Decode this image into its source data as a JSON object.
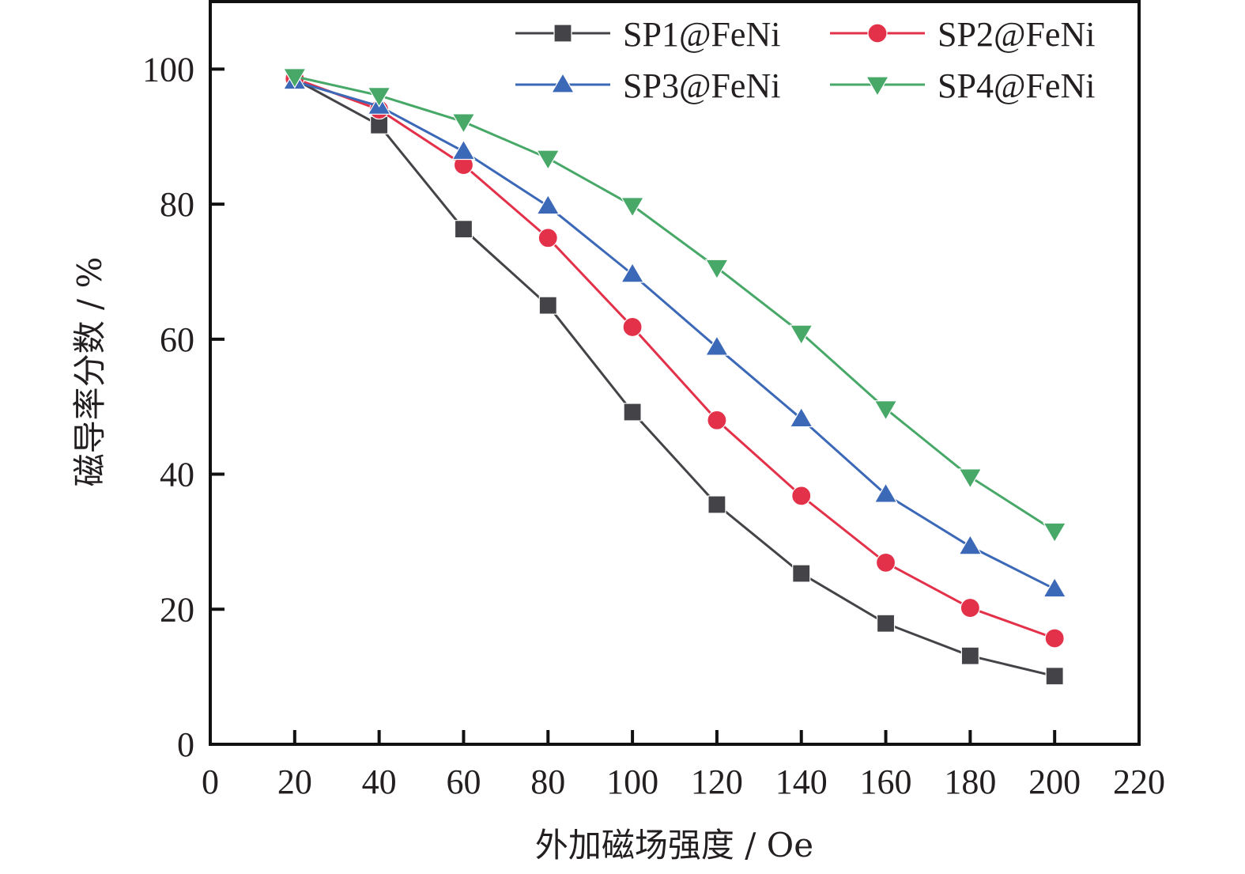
{
  "chart_data": {
    "type": "line",
    "title": "",
    "xlabel": "外加磁场强度 / Oe",
    "ylabel": "磁导率分数 / %",
    "xlim": [
      0,
      220
    ],
    "ylim": [
      0,
      110
    ],
    "xticks": [
      0,
      20,
      40,
      60,
      80,
      100,
      120,
      140,
      160,
      180,
      200,
      220
    ],
    "yticks": [
      0,
      20,
      40,
      60,
      80,
      100
    ],
    "x": [
      20,
      40,
      60,
      80,
      100,
      120,
      140,
      160,
      180,
      200
    ],
    "grid": false,
    "legend_position": "top-right",
    "series": [
      {
        "name": "SP1@FeNi",
        "marker": "square",
        "color": "#444448",
        "values": [
          98.5,
          91.7,
          76.3,
          65.0,
          49.2,
          35.5,
          25.3,
          17.9,
          13.1,
          10.1
        ]
      },
      {
        "name": "SP2@FeNi",
        "marker": "circle",
        "color": "#e4314a",
        "values": [
          98.6,
          94.0,
          85.8,
          75.0,
          61.8,
          48.0,
          36.8,
          26.9,
          20.2,
          15.7
        ]
      },
      {
        "name": "SP3@FeNi",
        "marker": "triangle-up",
        "color": "#3c68b8",
        "values": [
          98.2,
          94.5,
          87.8,
          79.7,
          69.6,
          58.8,
          48.2,
          37.0,
          29.3,
          23.0
        ]
      },
      {
        "name": "SP4@FeNi",
        "marker": "triangle-down",
        "color": "#47a868",
        "values": [
          98.9,
          96.1,
          92.2,
          86.8,
          79.8,
          70.6,
          60.9,
          49.7,
          39.6,
          31.6
        ]
      }
    ]
  }
}
